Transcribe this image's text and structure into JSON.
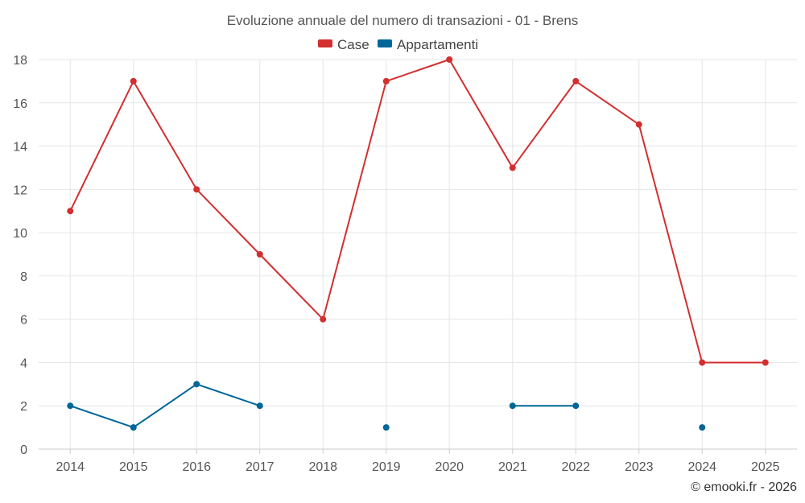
{
  "chart_data": {
    "type": "line",
    "title": "Evoluzione annuale del numero di transazioni - 01 - Brens",
    "categories": [
      "2014",
      "2015",
      "2016",
      "2017",
      "2018",
      "2019",
      "2020",
      "2021",
      "2022",
      "2023",
      "2024",
      "2025"
    ],
    "series": [
      {
        "name": "Case",
        "color": "#d32f2f",
        "values": [
          11,
          17,
          12,
          9,
          6,
          17,
          18,
          13,
          17,
          15,
          4,
          4
        ]
      },
      {
        "name": "Appartamenti",
        "color": "#006699",
        "values": [
          2,
          1,
          3,
          2,
          null,
          1,
          null,
          2,
          2,
          null,
          1,
          null
        ]
      }
    ],
    "ylim": [
      0,
      18
    ],
    "yticks": [
      0,
      2,
      4,
      6,
      8,
      10,
      12,
      14,
      16,
      18
    ],
    "grid": true,
    "legend_position": "top-center"
  },
  "credit": "© emooki.fr - 2026"
}
